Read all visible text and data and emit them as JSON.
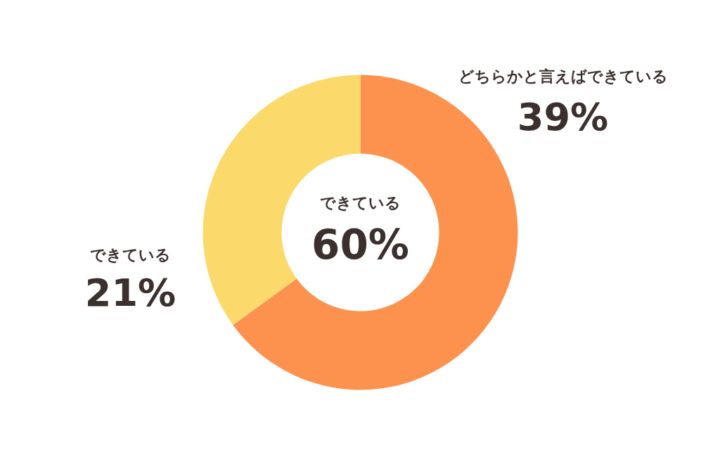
{
  "chart_data": {
    "type": "donut",
    "categories": [
      "どちらかと言えばできている",
      "できている"
    ],
    "values": [
      39,
      21
    ],
    "colors": [
      "#fd924e",
      "#fcd96b"
    ],
    "value_labels": [
      "39%",
      "21%"
    ],
    "annotations": [
      "できている",
      "60%"
    ]
  }
}
